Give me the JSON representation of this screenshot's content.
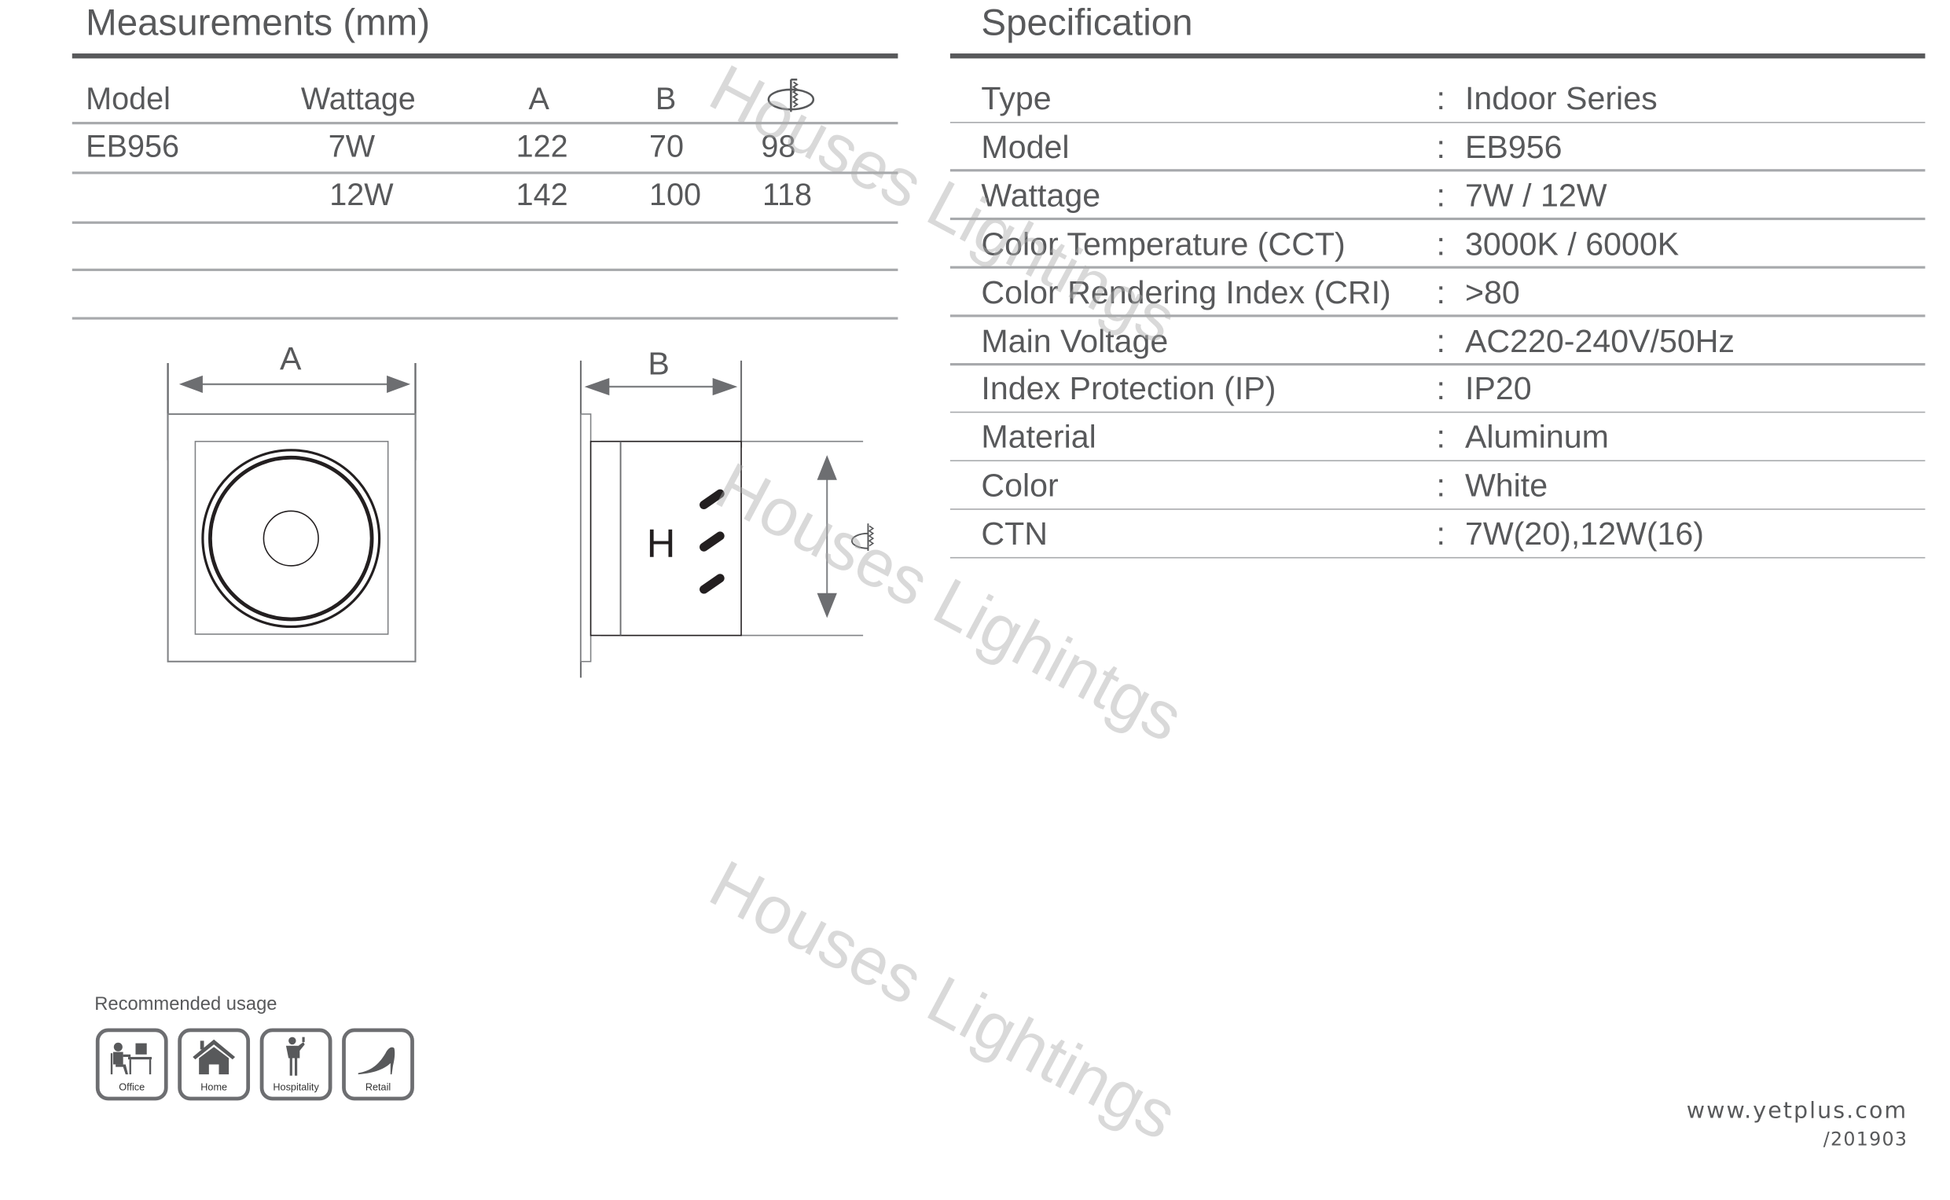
{
  "measurements": {
    "title": "Measurements (mm)",
    "headers": {
      "model": "Model",
      "wattage": "Wattage",
      "a": "A",
      "b": "B",
      "cutout_icon": "cutout-hole-icon"
    },
    "rows": [
      {
        "model": "EB956",
        "wattage": "7W",
        "a": "122",
        "b": "70",
        "cutout": "98"
      },
      {
        "model": "",
        "wattage": "12W",
        "a": "142",
        "b": "100",
        "cutout": "118"
      }
    ]
  },
  "drawing": {
    "label_a": "A",
    "label_b": "B",
    "label_h": "H"
  },
  "specification": {
    "title": "Specification",
    "rows": [
      {
        "label": "Type",
        "value": "Indoor Series"
      },
      {
        "label": "Model",
        "value": "EB956"
      },
      {
        "label": "Wattage",
        "value": "7W / 12W"
      },
      {
        "label": "Color Temperature (CCT)",
        "value": "3000K / 6000K"
      },
      {
        "label": "Color Rendering Index (CRI)",
        "value": ">80"
      },
      {
        "label": "Main Voltage",
        "value": "AC220-240V/50Hz"
      },
      {
        "label": "Index Protection (IP)",
        "value": "IP20"
      },
      {
        "label": "Material",
        "value": "Aluminum"
      },
      {
        "label": "Color",
        "value": "White"
      },
      {
        "label": "CTN",
        "value": "7W(20),12W(16)"
      }
    ],
    "separator": ":"
  },
  "usage": {
    "title": "Recommended usage",
    "items": [
      {
        "label": "Office",
        "icon": "office-desk-icon"
      },
      {
        "label": "Home",
        "icon": "house-icon"
      },
      {
        "label": "Hospitality",
        "icon": "waiter-icon"
      },
      {
        "label": "Retail",
        "icon": "high-heel-icon"
      }
    ]
  },
  "watermarks": [
    "Houses Lightings",
    "Houses Lighintgs",
    "Houses Lightings"
  ],
  "footer": {
    "website": "www.yetplus.com",
    "date_code": "/201903"
  },
  "colors": {
    "text": "#58595b",
    "rule": "#a7a9ac",
    "watermark": "#cccccc"
  }
}
